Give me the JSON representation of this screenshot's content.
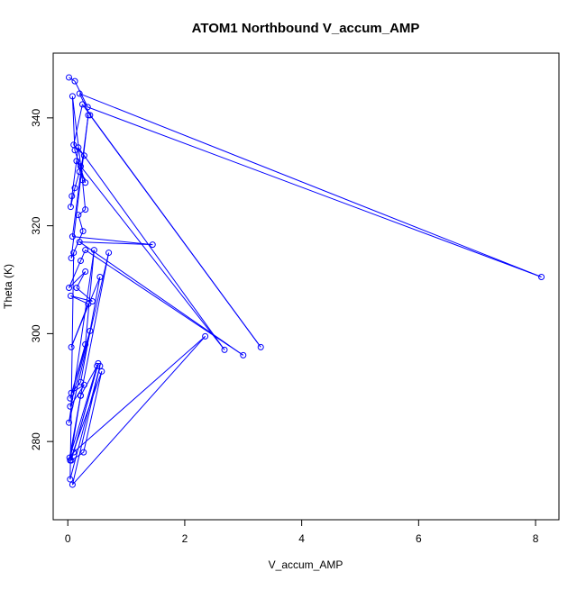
{
  "chart_data": {
    "type": "line",
    "title": "ATOM1 Northbound V_accum_AMP",
    "xlabel": "V_accum_AMP",
    "ylabel": "Theta (K)",
    "xlim": [
      -0.25,
      8.4
    ],
    "ylim": [
      265.5,
      352
    ],
    "x_ticks": [
      0,
      2,
      4,
      6,
      8
    ],
    "y_ticks": [
      280,
      300,
      320,
      340
    ],
    "grid": false,
    "legend": "none",
    "series_color": "#0000ff",
    "markers": "open-circle",
    "series": [
      {
        "x": [
          0.02,
          0.12,
          0.34,
          8.1,
          0.2,
          0.38,
          3.3,
          0.25,
          0.1,
          0.28,
          0.22,
          0.2,
          0.12,
          0.05,
          0.07,
          0.18,
          2.68,
          0.15,
          0.3,
          0.12,
          0.08,
          0.25,
          0.3,
          0.18,
          0.26,
          0.06,
          0.35,
          0.08,
          1.45,
          0.2,
          3.0,
          0.3,
          0.22,
          0.02,
          0.3,
          0.15,
          0.42,
          0.05,
          0.35,
          0.06,
          0.55,
          0.22,
          0.06,
          0.28,
          0.04,
          0.38,
          0.04,
          0.3,
          0.45,
          0.02,
          0.7,
          0.22,
          0.03,
          0.5,
          0.22,
          0.04,
          0.58,
          0.27,
          0.06,
          0.52,
          0.1,
          2.35,
          0.08,
          0.55,
          0.04,
          0.1
        ],
        "y": [
          347.5,
          346.8,
          342.0,
          310.5,
          344.5,
          340.5,
          297.5,
          342.5,
          335.0,
          333.0,
          331.0,
          330.0,
          327.0,
          323.5,
          325.5,
          334.5,
          297.0,
          332.0,
          328.0,
          334.0,
          344.0,
          328.5,
          323.0,
          322.0,
          319.0,
          314.0,
          340.5,
          318.0,
          316.5,
          317.0,
          296.0,
          315.5,
          313.5,
          308.5,
          311.5,
          308.5,
          306.0,
          307.0,
          305.5,
          297.5,
          310.5,
          291.0,
          289.0,
          290.5,
          286.5,
          300.5,
          288.0,
          298.0,
          315.5,
          283.5,
          315.0,
          288.5,
          277.0,
          294.0,
          288.5,
          276.5,
          293.0,
          278.0,
          276.5,
          294.5,
          278.0,
          299.5,
          272.0,
          294.0,
          273.0,
          315.0
        ]
      }
    ]
  }
}
